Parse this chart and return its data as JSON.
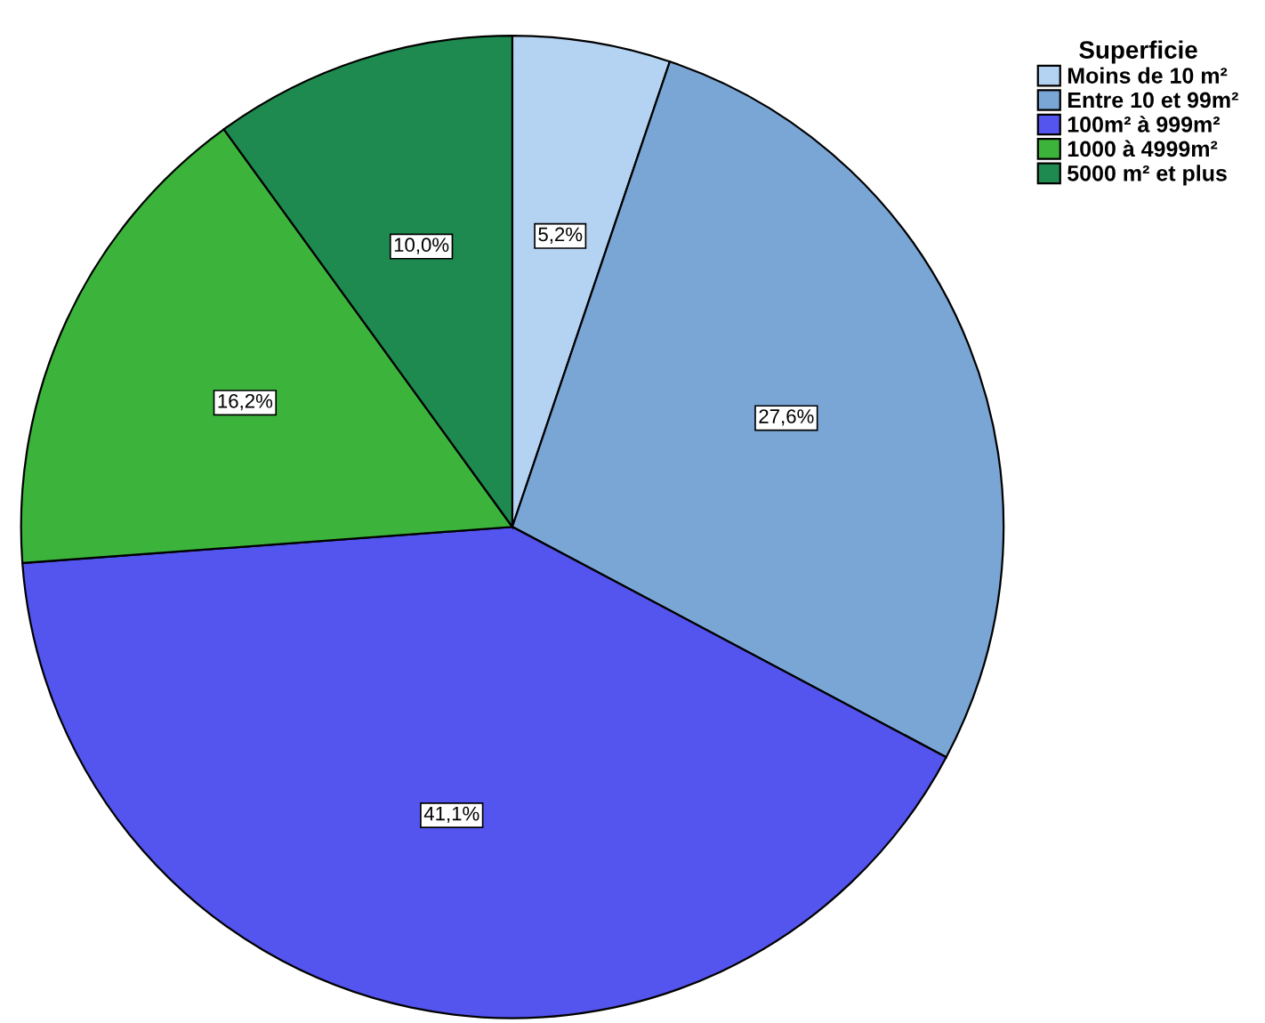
{
  "chart_data": {
    "type": "pie",
    "legend_title": "Superficie",
    "categories": [
      "Moins de 10 m²",
      "Entre 10 et 99m²",
      "100m² à 999m²",
      "1000 à 4999m²",
      "5000 m² et plus"
    ],
    "values": [
      5.2,
      27.6,
      41.1,
      16.2,
      10.0
    ],
    "value_labels": [
      "5,2%",
      "27,6%",
      "41,1%",
      "16,2%",
      "10,0%"
    ],
    "colors": [
      "#b4d3f2",
      "#7aa6d6",
      "#5454ee",
      "#3cb43c",
      "#1f8a4f"
    ],
    "legend": "top right"
  }
}
